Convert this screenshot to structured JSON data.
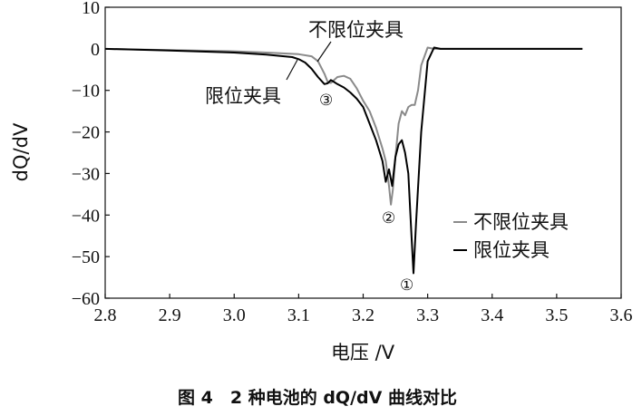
{
  "chart_data": {
    "type": "line",
    "title": "",
    "caption": "图 4　2 种电池的 dQ/dV 曲线对比",
    "xlabel": "电压 /V",
    "ylabel": "dQ/dV",
    "xlim": [
      2.8,
      3.6
    ],
    "ylim": [
      -60,
      10
    ],
    "xticks": [
      2.8,
      2.9,
      3.0,
      3.1,
      3.2,
      3.3,
      3.4,
      3.5,
      3.6
    ],
    "yticks": [
      10,
      0,
      -10,
      -20,
      -30,
      -40,
      -50,
      -60
    ],
    "xtick_labels": [
      "2.8",
      "2.9",
      "3.0",
      "3.1",
      "3.2",
      "3.3",
      "3.4",
      "3.5",
      "3.6"
    ],
    "ytick_labels": [
      "10",
      "0",
      "−10",
      "−20",
      "−30",
      "−40",
      "−50",
      "−60"
    ],
    "legend": {
      "position": "lower-right",
      "entries": [
        "不限位夹具",
        "限位夹具"
      ]
    },
    "annotations": [
      {
        "text": "不限位夹具"
      },
      {
        "text": "限位夹具"
      },
      {
        "text": "③"
      },
      {
        "text": "②"
      },
      {
        "text": "①"
      }
    ],
    "series": [
      {
        "name": "不限位夹具",
        "color": "#8a8a8a",
        "x": [
          2.8,
          2.9,
          3.0,
          3.05,
          3.1,
          3.12,
          3.13,
          3.14,
          3.145,
          3.15,
          3.155,
          3.16,
          3.17,
          3.18,
          3.19,
          3.2,
          3.21,
          3.22,
          3.23,
          3.235,
          3.24,
          3.243,
          3.246,
          3.25,
          3.255,
          3.26,
          3.265,
          3.27,
          3.275,
          3.28,
          3.285,
          3.29,
          3.3,
          3.31,
          3.32,
          3.35,
          3.4,
          3.45,
          3.5,
          3.54
        ],
        "y": [
          0,
          -0.3,
          -0.6,
          -0.9,
          -1.3,
          -1.8,
          -3,
          -6,
          -8,
          -8.2,
          -7.5,
          -6.8,
          -6.5,
          -7.2,
          -9.5,
          -12.5,
          -15,
          -19,
          -24,
          -27,
          -33,
          -37.5,
          -34,
          -26,
          -18,
          -15,
          -16,
          -14,
          -13.5,
          -13.5,
          -10,
          -4,
          0.3,
          0,
          0,
          0,
          0,
          0,
          0,
          0
        ]
      },
      {
        "name": "限位夹具",
        "color": "#000000",
        "x": [
          2.8,
          2.9,
          3.0,
          3.05,
          3.09,
          3.1,
          3.11,
          3.12,
          3.13,
          3.14,
          3.145,
          3.15,
          3.155,
          3.16,
          3.17,
          3.18,
          3.19,
          3.2,
          3.21,
          3.22,
          3.23,
          3.235,
          3.24,
          3.245,
          3.25,
          3.255,
          3.26,
          3.265,
          3.27,
          3.275,
          3.278,
          3.282,
          3.29,
          3.3,
          3.31,
          3.32,
          3.35,
          3.4,
          3.45,
          3.5,
          3.54
        ],
        "y": [
          0,
          -0.4,
          -0.9,
          -1.4,
          -2,
          -2.5,
          -3.3,
          -4.8,
          -6.8,
          -8.5,
          -8.3,
          -7.5,
          -8,
          -8.5,
          -9.3,
          -10.5,
          -12,
          -14,
          -18,
          -22,
          -27,
          -32,
          -29,
          -33,
          -26,
          -23,
          -22,
          -25,
          -30,
          -45,
          -54,
          -42,
          -20,
          -3,
          0.3,
          0,
          0,
          0,
          0,
          0,
          0
        ]
      }
    ]
  }
}
